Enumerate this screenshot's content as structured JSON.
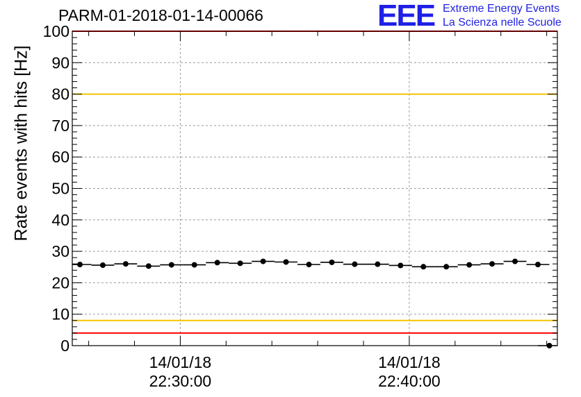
{
  "header": {
    "run_title": "PARM-01-2018-01-14-00066"
  },
  "logo": {
    "mark": "EEE",
    "line1": "Extreme Energy Events",
    "line2": "La Scienza nelle Scuole",
    "color": "#1f1fe6"
  },
  "chart_data": {
    "type": "scatter",
    "title": "PARM-01-2018-01-14-00066",
    "xlabel": "",
    "ylabel": "Rate events with hits [Hz]",
    "ylim": [
      0,
      100
    ],
    "yticks": [
      0,
      10,
      20,
      30,
      40,
      50,
      60,
      70,
      80,
      90,
      100
    ],
    "xlim": [
      "2018-01-14 22:25:17",
      "2018-01-14 22:46:28"
    ],
    "xticks": [
      {
        "x": "2018-01-14 22:30:00",
        "date": "14/01/18",
        "time": "22:30:00"
      },
      {
        "x": "2018-01-14 22:40:00",
        "date": "14/01/18",
        "time": "22:40:00"
      }
    ],
    "grid": true,
    "reference_lines": [
      {
        "y": 100,
        "color": "#ff0000"
      },
      {
        "y": 80,
        "color": "#f2c200"
      },
      {
        "y": 8,
        "color": "#f2c200"
      },
      {
        "y": 4,
        "color": "#ff0000"
      }
    ],
    "series": [
      {
        "marker_color": "#000000",
        "x": [
          "22:25:37",
          "22:26:37",
          "22:27:37",
          "22:28:37",
          "22:29:37",
          "22:30:37",
          "22:31:37",
          "22:32:37",
          "22:33:37",
          "22:34:37",
          "22:35:37",
          "22:36:37",
          "22:37:37",
          "22:38:37",
          "22:39:37",
          "22:40:37",
          "22:41:37",
          "22:42:37",
          "22:43:37",
          "22:44:37",
          "22:45:37",
          "22:46:07"
        ],
        "values": [
          25.8,
          25.6,
          26.0,
          25.3,
          25.7,
          25.7,
          26.4,
          26.2,
          26.8,
          26.6,
          25.8,
          26.5,
          25.9,
          25.9,
          25.5,
          25.1,
          25.1,
          25.7,
          26.0,
          26.8,
          25.8,
          0
        ],
        "bin_halfwidth_s": 30
      }
    ]
  }
}
